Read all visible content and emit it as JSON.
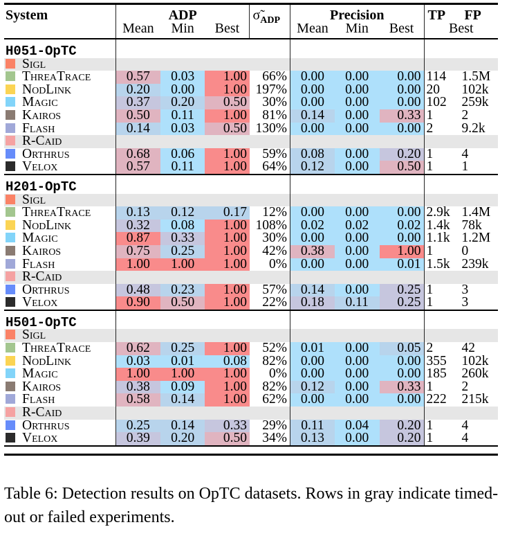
{
  "header": {
    "system": "System",
    "adp": "ADP",
    "sigma": "σ̃",
    "sigma_sub": "ADP",
    "precision": "Precision",
    "tp": "TP",
    "fp": "FP",
    "sub": {
      "mean": "Mean",
      "min": "Min",
      "best": "Best"
    }
  },
  "colors": {
    "high": "#f98b8b",
    "mid_high": "#e0b4c0",
    "mid": "#c6c6de",
    "low_mid": "#b8d4ec",
    "low": "#aee0fb",
    "gray_row": "#e6e6e6"
  },
  "system_colors": {
    "Sigl": "#fa8266",
    "ThreaTrace": "#a3c68f",
    "NodLink": "#fbd454",
    "Magic": "#82d4f9",
    "Kairos": "#8a7b72",
    "Flash": "#a0a8d8",
    "R-Caid": "#f5a2a2",
    "Orthrus": "#668cfa",
    "Velox": "#2b2b2b"
  },
  "datasets": [
    {
      "name": "H051-OpTC",
      "rows": [
        {
          "system": "Sigl",
          "failed": true
        },
        {
          "system": "ThreaTrace",
          "adp": [
            "0.57",
            "0.03",
            "1.00"
          ],
          "sigma": "66%",
          "precision": [
            "0.00",
            "0.00",
            "0.00"
          ],
          "tp": "114",
          "fp": "1.5M"
        },
        {
          "system": "NodLink",
          "adp": [
            "0.20",
            "0.00",
            "1.00"
          ],
          "sigma": "197%",
          "precision": [
            "0.00",
            "0.00",
            "0.00"
          ],
          "tp": "20",
          "fp": "102k"
        },
        {
          "system": "Magic",
          "adp": [
            "0.37",
            "0.20",
            "0.50"
          ],
          "sigma": "30%",
          "precision": [
            "0.00",
            "0.00",
            "0.00"
          ],
          "tp": "102",
          "fp": "259k"
        },
        {
          "system": "Kairos",
          "adp": [
            "0.50",
            "0.11",
            "1.00"
          ],
          "sigma": "81%",
          "precision": [
            "0.14",
            "0.00",
            "0.33"
          ],
          "tp": "1",
          "fp": "2"
        },
        {
          "system": "Flash",
          "adp": [
            "0.14",
            "0.03",
            "0.50"
          ],
          "sigma": "130%",
          "precision": [
            "0.00",
            "0.00",
            "0.00"
          ],
          "tp": "2",
          "fp": "9.2k"
        },
        {
          "system": "R-Caid",
          "failed": true
        },
        {
          "system": "Orthrus",
          "adp": [
            "0.68",
            "0.06",
            "1.00"
          ],
          "sigma": "59%",
          "precision": [
            "0.08",
            "0.00",
            "0.20"
          ],
          "tp": "1",
          "fp": "4"
        },
        {
          "system": "Velox",
          "adp": [
            "0.57",
            "0.11",
            "1.00"
          ],
          "sigma": "64%",
          "precision": [
            "0.12",
            "0.00",
            "0.50"
          ],
          "tp": "1",
          "fp": "1"
        }
      ]
    },
    {
      "name": "H201-OpTC",
      "rows": [
        {
          "system": "Sigl",
          "failed": true
        },
        {
          "system": "ThreaTrace",
          "adp": [
            "0.13",
            "0.12",
            "0.17"
          ],
          "sigma": "12%",
          "precision": [
            "0.00",
            "0.00",
            "0.00"
          ],
          "tp": "2.9k",
          "fp": "1.4M"
        },
        {
          "system": "NodLink",
          "adp": [
            "0.32",
            "0.08",
            "1.00"
          ],
          "sigma": "108%",
          "precision": [
            "0.02",
            "0.02",
            "0.02"
          ],
          "tp": "1.4k",
          "fp": "78k"
        },
        {
          "system": "Magic",
          "adp": [
            "0.87",
            "0.33",
            "1.00"
          ],
          "sigma": "30%",
          "precision": [
            "0.00",
            "0.00",
            "0.00"
          ],
          "tp": "1.1k",
          "fp": "1.2M"
        },
        {
          "system": "Kairos",
          "adp": [
            "0.75",
            "0.25",
            "1.00"
          ],
          "sigma": "42%",
          "precision": [
            "0.38",
            "0.00",
            "1.00"
          ],
          "tp": "1",
          "fp": "0"
        },
        {
          "system": "Flash",
          "adp": [
            "1.00",
            "1.00",
            "1.00"
          ],
          "sigma": "0%",
          "precision": [
            "0.00",
            "0.00",
            "0.01"
          ],
          "tp": "1.5k",
          "fp": "239k"
        },
        {
          "system": "R-Caid",
          "failed": true
        },
        {
          "system": "Orthrus",
          "adp": [
            "0.48",
            "0.23",
            "1.00"
          ],
          "sigma": "57%",
          "precision": [
            "0.14",
            "0.00",
            "0.25"
          ],
          "tp": "1",
          "fp": "3"
        },
        {
          "system": "Velox",
          "adp": [
            "0.90",
            "0.50",
            "1.00"
          ],
          "sigma": "22%",
          "precision": [
            "0.18",
            "0.11",
            "0.25"
          ],
          "tp": "1",
          "fp": "3"
        }
      ]
    },
    {
      "name": "H501-OpTC",
      "rows": [
        {
          "system": "Sigl",
          "failed": true
        },
        {
          "system": "ThreaTrace",
          "adp": [
            "0.62",
            "0.25",
            "1.00"
          ],
          "sigma": "52%",
          "precision": [
            "0.01",
            "0.00",
            "0.05"
          ],
          "tp": "2",
          "fp": "42"
        },
        {
          "system": "NodLink",
          "adp": [
            "0.03",
            "0.01",
            "0.08"
          ],
          "sigma": "82%",
          "precision": [
            "0.00",
            "0.00",
            "0.00"
          ],
          "tp": "355",
          "fp": "102k"
        },
        {
          "system": "Magic",
          "adp": [
            "1.00",
            "1.00",
            "1.00"
          ],
          "sigma": "0%",
          "precision": [
            "0.00",
            "0.00",
            "0.00"
          ],
          "tp": "185",
          "fp": "260k"
        },
        {
          "system": "Kairos",
          "adp": [
            "0.38",
            "0.09",
            "1.00"
          ],
          "sigma": "82%",
          "precision": [
            "0.12",
            "0.00",
            "0.33"
          ],
          "tp": "1",
          "fp": "2"
        },
        {
          "system": "Flash",
          "adp": [
            "0.58",
            "0.14",
            "1.00"
          ],
          "sigma": "62%",
          "precision": [
            "0.00",
            "0.00",
            "0.00"
          ],
          "tp": "222",
          "fp": "215k"
        },
        {
          "system": "R-Caid",
          "failed": true
        },
        {
          "system": "Orthrus",
          "adp": [
            "0.25",
            "0.14",
            "0.33"
          ],
          "sigma": "29%",
          "precision": [
            "0.11",
            "0.04",
            "0.20"
          ],
          "tp": "1",
          "fp": "4"
        },
        {
          "system": "Velox",
          "adp": [
            "0.39",
            "0.20",
            "0.50"
          ],
          "sigma": "34%",
          "precision": [
            "0.13",
            "0.00",
            "0.20"
          ],
          "tp": "1",
          "fp": "4"
        }
      ]
    }
  ],
  "caption": "Table 6: Detection results on OpTC datasets. Rows in gray indicate timed-out or failed experiments."
}
